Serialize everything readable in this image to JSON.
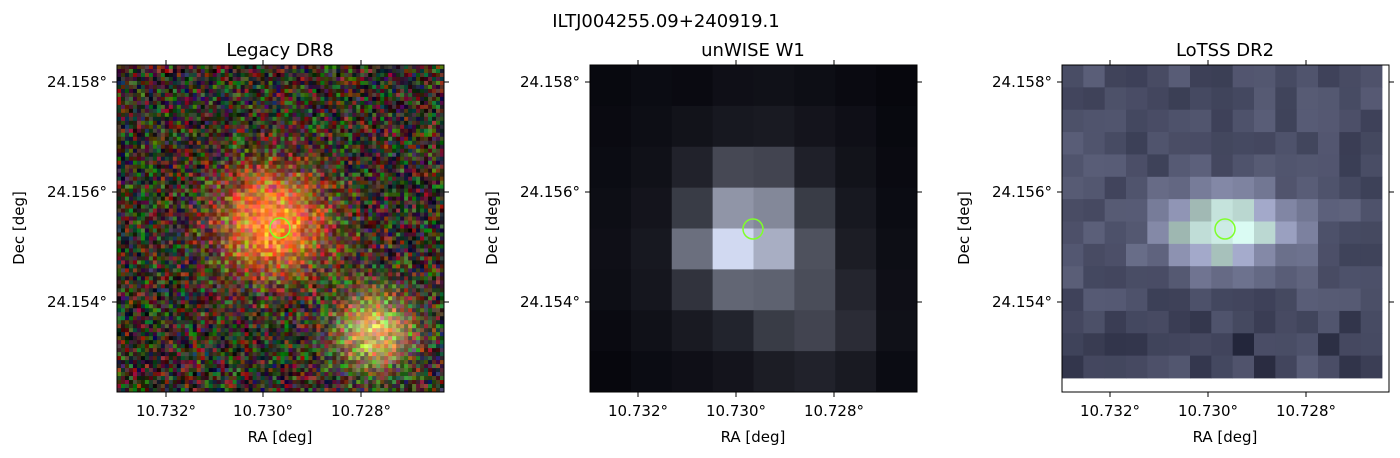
{
  "figure": {
    "title": "ILTJ004255.09+240919.1"
  },
  "panels": [
    {
      "id": "legacy",
      "title": "Legacy DR8",
      "xlabel": "RA [deg]",
      "ylabel": "Dec [deg]",
      "xticks": [
        "10.732°",
        "10.730°",
        "10.728°"
      ],
      "yticks": [
        "24.158°",
        "24.156°",
        "24.154°"
      ],
      "marker_color": "#7fff2a"
    },
    {
      "id": "unwise",
      "title": "unWISE W1",
      "xlabel": "RA [deg]",
      "ylabel": "Dec [deg]",
      "xticks": [
        "10.732°",
        "10.730°",
        "10.728°"
      ],
      "yticks": [
        "24.158°",
        "24.156°",
        "24.154°"
      ],
      "marker_color": "#7fff2a"
    },
    {
      "id": "lotss",
      "title": "LoTSS DR2",
      "xlabel": "RA [deg]",
      "ylabel": "Dec [deg]",
      "xticks": [
        "10.732°",
        "10.730°",
        "10.728°"
      ],
      "yticks": [
        "24.158°",
        "24.156°",
        "24.154°"
      ],
      "marker_color": "#7fff2a"
    }
  ]
}
